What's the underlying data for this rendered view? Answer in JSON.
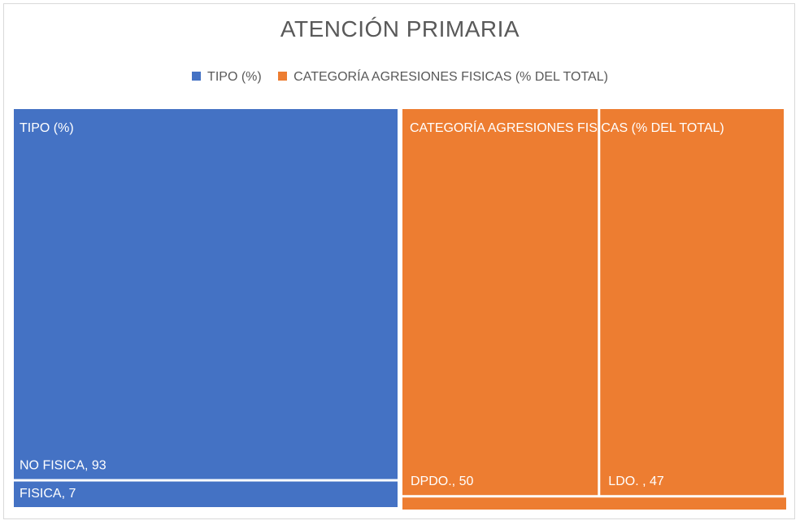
{
  "chart_data": {
    "type": "treemap",
    "title": "ATENCIÓN PRIMARIA",
    "legend_position": "top",
    "series": [
      {
        "name": "TIPO (%)",
        "color": "#4472c4",
        "total": 100,
        "items": [
          {
            "label": "NO FISICA, 93",
            "category": "NO FISICA",
            "value": 93
          },
          {
            "label": "FISICA, 7",
            "category": "FISICA",
            "value": 7
          }
        ]
      },
      {
        "name": "CATEGORÍA AGRESIONES FISICAS (% DEL TOTAL)",
        "color": "#ed7d31",
        "total": 100,
        "items": [
          {
            "label": "DPDO., 50",
            "category": "DPDO.",
            "value": 50
          },
          {
            "label": "LDO. , 47",
            "category": "LDO. ",
            "value": 47
          },
          {
            "label": "",
            "category": "",
            "value": 3
          }
        ]
      }
    ]
  }
}
